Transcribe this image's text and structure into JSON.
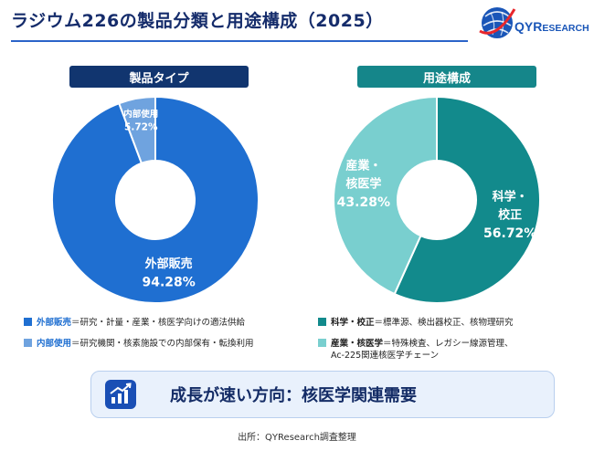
{
  "header": {
    "title": "ラジウム226の製品分類と用途構成（2025）"
  },
  "logo": {
    "brand": "QYRESEARCH",
    "brand_color": "#1a56b8",
    "accent_color": "#e8262b"
  },
  "chart_data": [
    {
      "type": "pie",
      "title": "製品タイプ",
      "categories": [
        "外部販売",
        "内部使用"
      ],
      "values": [
        94.28,
        5.72
      ],
      "labels": [
        "94.28%",
        "5.72%"
      ],
      "colors": [
        "#1f6fd1",
        "#6fa3df"
      ],
      "legend": [
        {
          "key": "外部販売",
          "desc": "＝研究・計量・産業・核医学向けの適法供給"
        },
        {
          "key": "内部使用",
          "desc": "＝研究機関・核素施設での内部保有・転換利用"
        }
      ]
    },
    {
      "type": "pie",
      "title": "用途構成",
      "categories": [
        "科学・校正",
        "産業・核医学"
      ],
      "values": [
        56.72,
        43.28
      ],
      "labels": [
        "56.72%",
        "43.28%"
      ],
      "label_lines": [
        [
          "科学・",
          "校正"
        ],
        [
          "産業・",
          "核医学"
        ]
      ],
      "colors": [
        "#128a8c",
        "#79cfcf"
      ],
      "legend": [
        {
          "key": "科学・校正",
          "desc": "＝標準源、検出器校正、核物理研究"
        },
        {
          "key": "産業・核医学",
          "desc": "＝特殊検査、レガシー線源管理、",
          "desc2": "Ac-225関連核医学チェーン"
        }
      ]
    }
  ],
  "banner": {
    "text": "成長が速い方向：核医学関連需要"
  },
  "footer": {
    "source": "出所：QYResearch調査整理"
  }
}
